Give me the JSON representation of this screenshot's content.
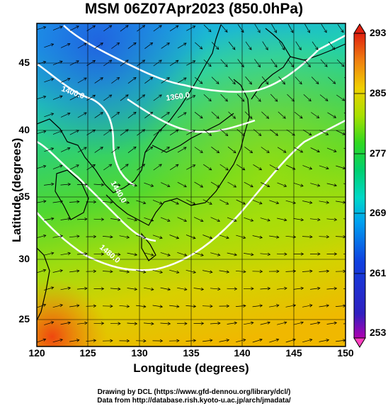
{
  "title": "MSM 06Z07Apr2023 (850.0hPa)",
  "axes": {
    "xlabel": "Longitude (degrees)",
    "ylabel": "Latitude  (degrees)",
    "xticks": [
      "120",
      "125",
      "130",
      "135",
      "140",
      "145",
      "150"
    ],
    "yticks": [
      "45",
      "40",
      "35",
      "30",
      "25"
    ]
  },
  "colorbar": {
    "ticks": [
      "293",
      "285",
      "277",
      "269",
      "261",
      "253"
    ],
    "min": 253,
    "max": 293
  },
  "contour_labels": [
    "1400.0",
    "1360.0",
    "1440.0",
    "1480.0"
  ],
  "credits": {
    "line1": "Drawing by DCL (https://www.gfd-dennou.org/library/dcl/)",
    "line2": "Data from http://database.rish.kyoto-u.ac.jp/arch/jmadata/"
  },
  "chart_data": {
    "type": "heatmap",
    "title": "MSM 06Z07Apr2023 (850.0hPa)",
    "xlabel": "Longitude (degrees)",
    "ylabel": "Latitude  (degrees)",
    "xlim": [
      120,
      150
    ],
    "ylim": [
      22.4,
      47.6
    ],
    "x": [
      120,
      125,
      130,
      135,
      140,
      145,
      150
    ],
    "y": [
      25,
      30,
      35,
      40,
      45
    ],
    "colorbar_range": [
      253,
      293
    ],
    "contours": [
      1360.0,
      1400.0,
      1440.0,
      1480.0
    ]
  }
}
